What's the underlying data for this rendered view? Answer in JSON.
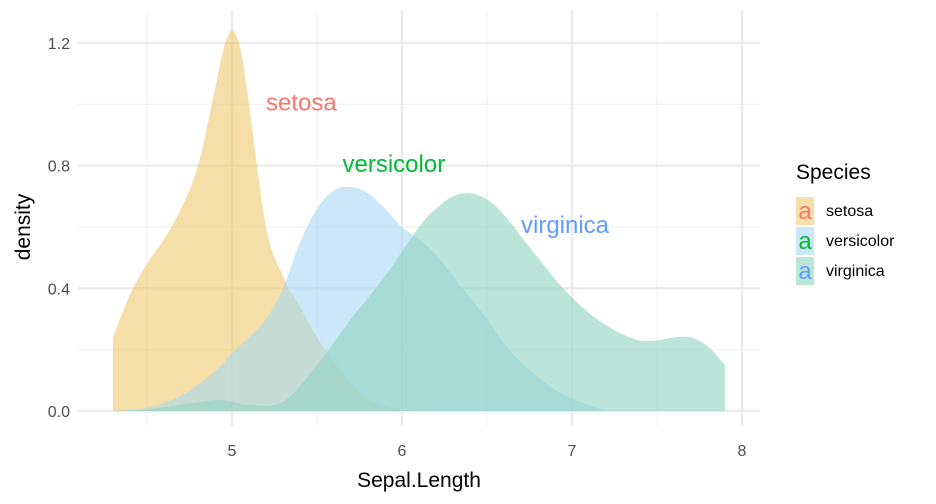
{
  "chart_data": {
    "type": "area",
    "subtype": "density",
    "title": "",
    "xlabel": "Sepal.Length",
    "ylabel": "density",
    "xlim": [
      4.3,
      7.9
    ],
    "ylim": [
      0,
      1.2
    ],
    "xticks": [
      5,
      6,
      7,
      8
    ],
    "yticks": [
      0.0,
      0.4,
      0.8,
      1.2
    ],
    "xtick_labels": [
      "5",
      "6",
      "7",
      "8"
    ],
    "ytick_labels": [
      "0.0",
      "0.4",
      "0.8",
      "1.2"
    ],
    "grid": true,
    "legend": {
      "title": "Species",
      "position": "right",
      "key_glyph": "a"
    },
    "series": [
      {
        "name": "setosa",
        "text_color": "#F8766D",
        "fill_color": "#F0C870",
        "label_at": [
          5.2,
          0.98
        ],
        "x": [
          4.3,
          4.4,
          4.5,
          4.6,
          4.7,
          4.8,
          4.9,
          4.95,
          5.0,
          5.05,
          5.1,
          5.2,
          5.3,
          5.4,
          5.5,
          5.6,
          5.7,
          5.8,
          5.9,
          6.0,
          6.1
        ],
        "y": [
          0.24,
          0.38,
          0.48,
          0.56,
          0.66,
          0.8,
          1.05,
          1.18,
          1.24,
          1.18,
          1.0,
          0.6,
          0.44,
          0.34,
          0.24,
          0.16,
          0.09,
          0.04,
          0.015,
          0.004,
          0.0
        ]
      },
      {
        "name": "versicolor",
        "text_color": "#00BA38",
        "fill_color": "#A8D8F4",
        "label_at": [
          5.65,
          0.78
        ],
        "x": [
          4.3,
          4.5,
          4.7,
          4.9,
          5.0,
          5.1,
          5.2,
          5.3,
          5.4,
          5.5,
          5.6,
          5.7,
          5.8,
          5.9,
          6.0,
          6.1,
          6.2,
          6.3,
          6.4,
          6.5,
          6.6,
          6.7,
          6.8,
          6.9,
          7.0,
          7.1,
          7.2
        ],
        "y": [
          0.0,
          0.01,
          0.05,
          0.13,
          0.19,
          0.24,
          0.3,
          0.4,
          0.55,
          0.66,
          0.72,
          0.73,
          0.71,
          0.66,
          0.6,
          0.56,
          0.51,
          0.44,
          0.37,
          0.3,
          0.22,
          0.16,
          0.11,
          0.07,
          0.04,
          0.02,
          0.0
        ]
      },
      {
        "name": "virginica",
        "text_color": "#619CFF",
        "fill_color": "#90D4C0",
        "label_at": [
          6.7,
          0.58
        ],
        "x": [
          4.3,
          4.5,
          4.7,
          4.9,
          5.0,
          5.1,
          5.3,
          5.5,
          5.7,
          5.9,
          6.1,
          6.2,
          6.3,
          6.4,
          6.5,
          6.6,
          6.7,
          6.8,
          6.9,
          7.0,
          7.1,
          7.2,
          7.3,
          7.4,
          7.5,
          7.6,
          7.7,
          7.8,
          7.9
        ],
        "y": [
          0.0,
          0.005,
          0.02,
          0.035,
          0.03,
          0.02,
          0.03,
          0.15,
          0.3,
          0.44,
          0.6,
          0.66,
          0.7,
          0.71,
          0.69,
          0.64,
          0.57,
          0.5,
          0.43,
          0.37,
          0.32,
          0.28,
          0.25,
          0.23,
          0.23,
          0.24,
          0.24,
          0.21,
          0.15
        ]
      }
    ]
  }
}
